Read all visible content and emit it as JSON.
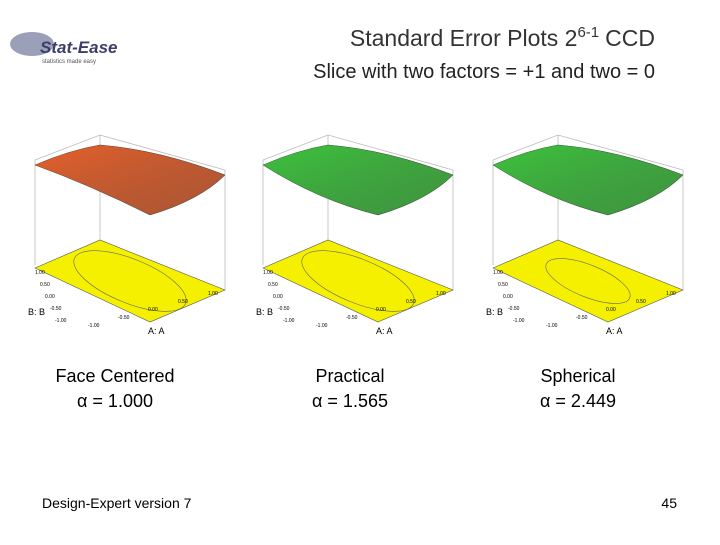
{
  "logo": {
    "name": "Stat-Ease",
    "tagline": "statistics made easy"
  },
  "title": {
    "text": "Standard Error Plots 2",
    "superscript": "6-1",
    "suffix": "CCD"
  },
  "subtitle": "Slice with two factors = +1 and two = 0",
  "plots": [
    {
      "caption": "Face Centered",
      "alpha": "α = 1.000",
      "surface_color": "#e8602a",
      "x_axis": "A: A",
      "y_axis": "B: B",
      "x_ticks": [
        "-1.00",
        "-0.50",
        "0.00",
        "0.50",
        "1.00"
      ],
      "y_ticks": [
        "-1.00",
        "-0.50",
        "0.00",
        "0.50",
        "1.00"
      ]
    },
    {
      "caption": "Practical",
      "alpha": "α = 1.565",
      "surface_color": "#3cc43c",
      "x_axis": "A: A",
      "y_axis": "B: B",
      "x_ticks": [
        "-1.00",
        "-0.50",
        "0.00",
        "0.50",
        "1.00"
      ],
      "y_ticks": [
        "-1.00",
        "-0.50",
        "0.00",
        "0.50",
        "1.00"
      ]
    },
    {
      "caption": "Spherical",
      "alpha": "α = 2.449",
      "surface_color": "#3cc43c",
      "x_axis": "A: A",
      "y_axis": "B: B",
      "x_ticks": [
        "-1.00",
        "-0.50",
        "0.00",
        "0.50",
        "1.00"
      ],
      "y_ticks": [
        "-1.00",
        "-0.50",
        "0.00",
        "0.50",
        "1.00"
      ]
    }
  ],
  "footer": {
    "left": "Design-Expert version 7",
    "page": "45"
  }
}
